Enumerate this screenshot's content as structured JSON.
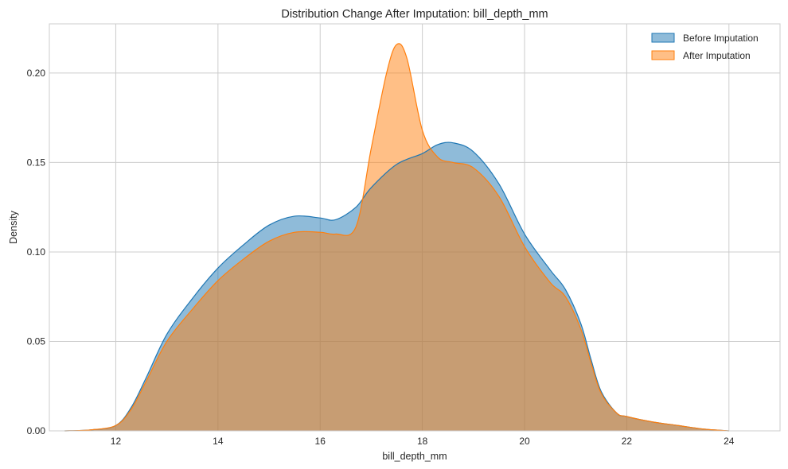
{
  "chart_data": {
    "type": "area",
    "subtype": "kde",
    "title": "Distribution Change After Imputation: bill_depth_mm",
    "xlabel": "bill_depth_mm",
    "ylabel": "Density",
    "xlim": [
      10.7,
      25.0
    ],
    "ylim": [
      0,
      0.2275
    ],
    "xticks": [
      12,
      14,
      16,
      18,
      20,
      22,
      24
    ],
    "yticks": [
      0.0,
      0.05,
      0.1,
      0.15,
      0.2
    ],
    "ytick_labels": [
      "0.00",
      "0.05",
      "0.10",
      "0.15",
      "0.20"
    ],
    "grid": true,
    "legend_position": "upper right",
    "series": [
      {
        "name": "Before Imputation",
        "color": "#1f77b4",
        "fill_color": "#1f77b4",
        "fill_opacity": 0.5,
        "x": [
          11.0,
          11.5,
          12.0,
          12.3,
          12.6,
          13.0,
          13.5,
          14.0,
          14.5,
          15.0,
          15.5,
          16.0,
          16.3,
          16.7,
          17.0,
          17.5,
          18.0,
          18.3,
          18.6,
          19.0,
          19.5,
          20.0,
          20.5,
          20.8,
          21.1,
          21.3,
          21.5,
          21.8,
          22.0,
          22.5,
          23.0,
          23.5,
          24.0
        ],
        "y": [
          0.0,
          0.0005,
          0.003,
          0.013,
          0.03,
          0.054,
          0.074,
          0.091,
          0.104,
          0.115,
          0.12,
          0.119,
          0.118,
          0.125,
          0.136,
          0.149,
          0.155,
          0.16,
          0.161,
          0.156,
          0.138,
          0.11,
          0.09,
          0.079,
          0.06,
          0.04,
          0.022,
          0.01,
          0.008,
          0.005,
          0.003,
          0.001,
          0.0
        ]
      },
      {
        "name": "After Imputation",
        "color": "#ff7f0e",
        "fill_color": "#ff7f0e",
        "fill_opacity": 0.5,
        "x": [
          11.0,
          11.5,
          12.0,
          12.3,
          12.6,
          13.0,
          13.5,
          14.0,
          14.5,
          15.0,
          15.5,
          16.0,
          16.3,
          16.7,
          17.0,
          17.3,
          17.5,
          17.7,
          18.0,
          18.3,
          18.6,
          19.0,
          19.5,
          20.0,
          20.5,
          20.8,
          21.1,
          21.3,
          21.5,
          21.8,
          22.0,
          22.5,
          23.0,
          23.5,
          24.0
        ],
        "y": [
          0.0,
          0.0005,
          0.003,
          0.012,
          0.028,
          0.05,
          0.068,
          0.084,
          0.096,
          0.106,
          0.111,
          0.111,
          0.11,
          0.114,
          0.158,
          0.2,
          0.216,
          0.208,
          0.168,
          0.153,
          0.15,
          0.147,
          0.131,
          0.103,
          0.083,
          0.075,
          0.057,
          0.038,
          0.021,
          0.01,
          0.008,
          0.005,
          0.003,
          0.001,
          0.0
        ]
      }
    ]
  }
}
